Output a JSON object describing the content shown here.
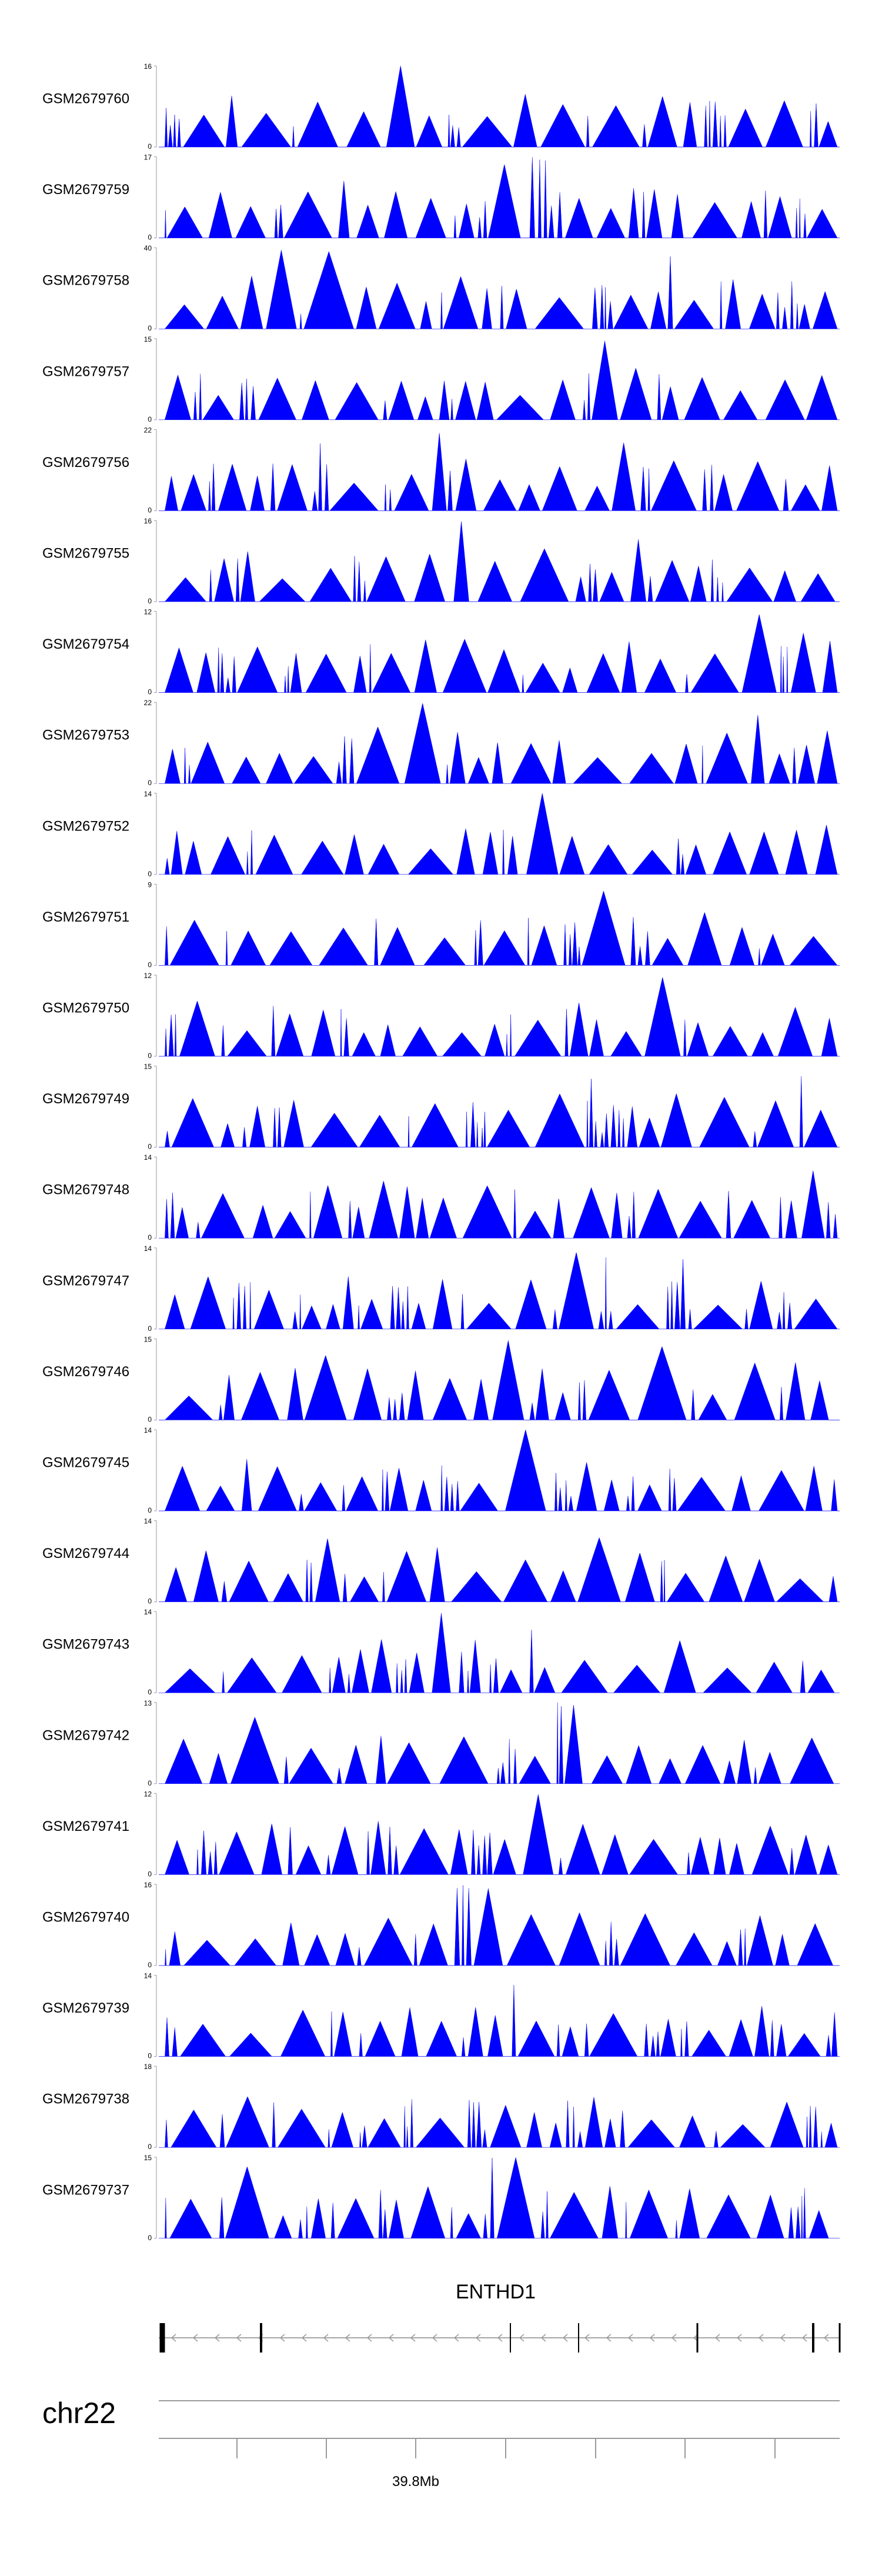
{
  "chart_data": {
    "type": "area",
    "color": "#0000ff",
    "tracks": [
      {
        "name": "GSM2679760",
        "ymax": "16",
        "ymin": "0",
        "seed": 11,
        "peak": 0.33
      },
      {
        "name": "GSM2679759",
        "ymax": "17",
        "ymin": "0",
        "seed": 12,
        "peak": 0.55
      },
      {
        "name": "GSM2679758",
        "ymax": "40",
        "ymin": "0",
        "seed": 13,
        "peak": 0.15
      },
      {
        "name": "GSM2679757",
        "ymax": "15",
        "ymin": "0",
        "seed": 14,
        "peak": 0.65
      },
      {
        "name": "GSM2679756",
        "ymax": "22",
        "ymin": "0",
        "seed": 15,
        "peak": 0.4
      },
      {
        "name": "GSM2679755",
        "ymax": "16",
        "ymin": "0",
        "seed": 16,
        "peak": 0.45
      },
      {
        "name": "GSM2679754",
        "ymax": "12",
        "ymin": "0",
        "seed": 17,
        "peak": 0.85
      },
      {
        "name": "GSM2679753",
        "ymax": "22",
        "ymin": "0",
        "seed": 18,
        "peak": 0.35
      },
      {
        "name": "GSM2679752",
        "ymax": "14",
        "ymin": "0",
        "seed": 19,
        "peak": 0.55
      },
      {
        "name": "GSM2679751",
        "ymax": "9",
        "ymin": "0",
        "seed": 20,
        "peak": 0.95
      },
      {
        "name": "GSM2679750",
        "ymax": "12",
        "ymin": "0",
        "seed": 21,
        "peak": 0.7
      },
      {
        "name": "GSM2679749",
        "ymax": "15",
        "ymin": "0",
        "seed": 22,
        "peak": 0.4
      },
      {
        "name": "GSM2679748",
        "ymax": "14",
        "ymin": "0",
        "seed": 23,
        "peak": 0.5
      },
      {
        "name": "GSM2679747",
        "ymax": "14",
        "ymin": "0",
        "seed": 24,
        "peak": 0.6
      },
      {
        "name": "GSM2679746",
        "ymax": "15",
        "ymin": "0",
        "seed": 25,
        "peak": 0.5
      },
      {
        "name": "GSM2679745",
        "ymax": "14",
        "ymin": "0",
        "seed": 26,
        "peak": 0.5
      },
      {
        "name": "GSM2679744",
        "ymax": "14",
        "ymin": "0",
        "seed": 27,
        "peak": 0.55
      },
      {
        "name": "GSM2679743",
        "ymax": "14",
        "ymin": "0",
        "seed": 28,
        "peak": 0.4
      },
      {
        "name": "GSM2679742",
        "ymax": "13",
        "ymin": "0",
        "seed": 29,
        "peak": 0.6
      },
      {
        "name": "GSM2679741",
        "ymax": "12",
        "ymin": "0",
        "seed": 30,
        "peak": 0.55
      },
      {
        "name": "GSM2679740",
        "ymax": "16",
        "ymin": "0",
        "seed": 31,
        "peak": 0.45
      },
      {
        "name": "GSM2679739",
        "ymax": "14",
        "ymin": "0",
        "seed": 32,
        "peak": 0.55
      },
      {
        "name": "GSM2679738",
        "ymax": "18",
        "ymin": "0",
        "seed": 33,
        "peak": 0.4
      },
      {
        "name": "GSM2679737",
        "ymax": "15",
        "ymin": "0",
        "seed": 34,
        "peak": 0.5
      }
    ],
    "gene": {
      "name": "ENTHD1",
      "strand": "-"
    },
    "chromosome": "chr22",
    "axis_tick_label": "39.8Mb"
  }
}
